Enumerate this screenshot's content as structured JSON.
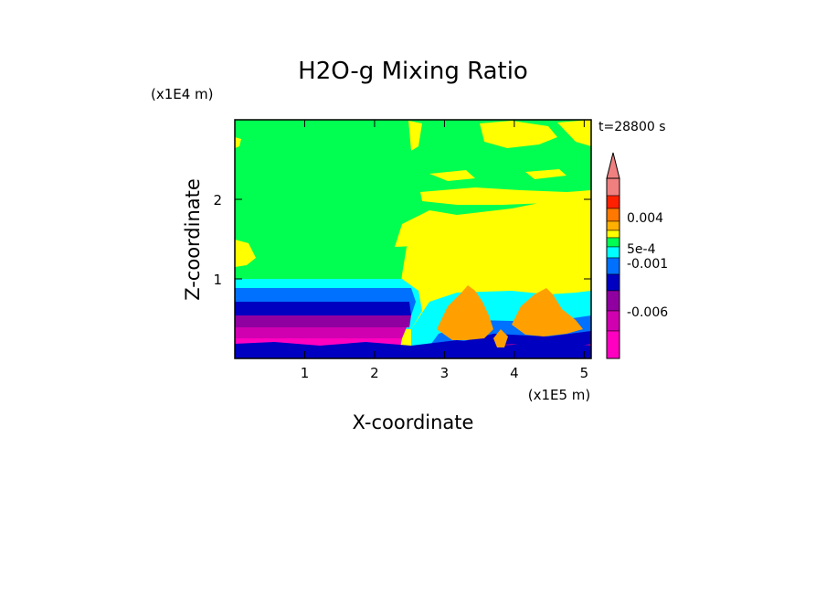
{
  "chart_data": {
    "type": "heatmap",
    "title": "H2O-g Mixing Ratio",
    "xlabel": "X-coordinate",
    "ylabel": "Z-coordinate",
    "x_unit": "(x1E5 m)",
    "y_unit": "(x1E4 m)",
    "time_label": "t=28800 s",
    "xlim": [
      0,
      5.1
    ],
    "ylim": [
      0,
      3.0
    ],
    "x_ticks": [
      "1",
      "2",
      "3",
      "4",
      "5"
    ],
    "x_tick_values": [
      1,
      2,
      3,
      4,
      5
    ],
    "y_ticks": [
      "1",
      "2"
    ],
    "y_tick_values": [
      1,
      2
    ],
    "colorbar": {
      "labels": [
        "0.004",
        "5e-4",
        "-0.001",
        "-0.006"
      ],
      "colors_top_to_bottom": [
        "#f08080",
        "#ff2000",
        "#ff7800",
        "#ffb000",
        "#ffff00",
        "#00ff50",
        "#00ffff",
        "#0070ff",
        "#0000c0",
        "#9000a0",
        "#d000b0",
        "#ff00c0"
      ],
      "extend": "max"
    },
    "colors": {
      "background_field": "#00ff50",
      "moist_plume": "#ffff00",
      "convective_cores": "#ffa000",
      "cold_pool": [
        "#00ffff",
        "#0070ff",
        "#0000c0",
        "#9000a0",
        "#d000b0",
        "#ff00c0"
      ]
    }
  }
}
